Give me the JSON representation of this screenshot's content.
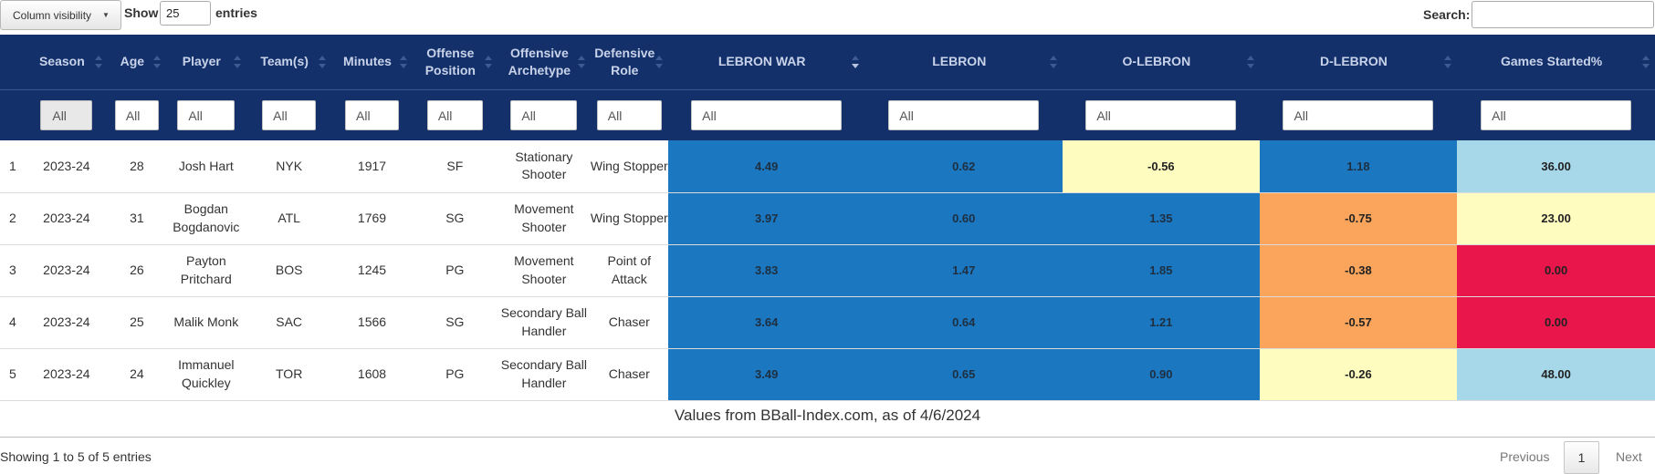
{
  "controls": {
    "column_visibility": "Column visibility",
    "show": "Show",
    "page_length": "25",
    "entries": "entries",
    "search_label": "Search:",
    "search_value": ""
  },
  "columns": [
    {
      "label": "",
      "sortable": false
    },
    {
      "label": "Season",
      "sortable": true
    },
    {
      "label": "Age",
      "sortable": true
    },
    {
      "label": "Player",
      "sortable": true
    },
    {
      "label": "Team(s)",
      "sortable": true
    },
    {
      "label": "Minutes",
      "sortable": true
    },
    {
      "label": "Offense Position",
      "sortable": true
    },
    {
      "label": "Offensive Archetype",
      "sortable": true
    },
    {
      "label": "Defensive Role",
      "sortable": true
    },
    {
      "label": "LEBRON WAR",
      "sortable": true,
      "sorted": "desc"
    },
    {
      "label": "LEBRON",
      "sortable": true
    },
    {
      "label": "O-LEBRON",
      "sortable": true
    },
    {
      "label": "D-LEBRON",
      "sortable": true
    },
    {
      "label": "Games Started%",
      "sortable": true
    }
  ],
  "filters": [
    "All",
    "All",
    "All",
    "All",
    "All",
    "All",
    "All",
    "All",
    "All",
    "All",
    "All",
    "All",
    "All"
  ],
  "rows": [
    {
      "n": "1",
      "season": "2023-24",
      "age": "28",
      "player": "Josh Hart",
      "team": "NYK",
      "minutes": "1917",
      "pos": "SF",
      "archetype": "Stationary Shooter",
      "role": "Wing Stopper",
      "war": "4.49",
      "lebron": "0.62",
      "olebron": "-0.56",
      "dlebron": "1.18",
      "gs": "36.00"
    },
    {
      "n": "2",
      "season": "2023-24",
      "age": "31",
      "player": "Bogdan Bogdanovic",
      "team": "ATL",
      "minutes": "1769",
      "pos": "SG",
      "archetype": "Movement Shooter",
      "role": "Wing Stopper",
      "war": "3.97",
      "lebron": "0.60",
      "olebron": "1.35",
      "dlebron": "-0.75",
      "gs": "23.00"
    },
    {
      "n": "3",
      "season": "2023-24",
      "age": "26",
      "player": "Payton Pritchard",
      "team": "BOS",
      "minutes": "1245",
      "pos": "PG",
      "archetype": "Movement Shooter",
      "role": "Point of Attack",
      "war": "3.83",
      "lebron": "1.47",
      "olebron": "1.85",
      "dlebron": "-0.38",
      "gs": "0.00"
    },
    {
      "n": "4",
      "season": "2023-24",
      "age": "25",
      "player": "Malik Monk",
      "team": "SAC",
      "minutes": "1566",
      "pos": "SG",
      "archetype": "Secondary Ball Handler",
      "role": "Chaser",
      "war": "3.64",
      "lebron": "0.64",
      "olebron": "1.21",
      "dlebron": "-0.57",
      "gs": "0.00"
    },
    {
      "n": "5",
      "season": "2023-24",
      "age": "24",
      "player": "Immanuel Quickley",
      "team": "TOR",
      "minutes": "1608",
      "pos": "PG",
      "archetype": "Secondary Ball Handler",
      "role": "Chaser",
      "war": "3.49",
      "lebron": "0.65",
      "olebron": "0.90",
      "dlebron": "-0.26",
      "gs": "48.00"
    }
  ],
  "cell_colors": {
    "war": [
      "#1a77c0",
      "#1a77c0",
      "#1a77c0",
      "#1a77c0",
      "#1a77c0"
    ],
    "lebron": [
      "#1a77c0",
      "#1a77c0",
      "#1a77c0",
      "#1a77c0",
      "#1a77c0"
    ],
    "olebron": [
      "#fefdbf",
      "#1a77c0",
      "#1a77c0",
      "#1a77c0",
      "#1a77c0"
    ],
    "dlebron": [
      "#1a77c0",
      "#fba55c",
      "#fba55c",
      "#fba55c",
      "#fefdbf"
    ],
    "gs": [
      "#a6d8ea",
      "#fefdbf",
      "#e8164a",
      "#e8164a",
      "#a6d8ea"
    ]
  },
  "caption": "Values from BBall-Index.com, as of 4/6/2024",
  "footer": {
    "info": "Showing 1 to 5 of 5 entries",
    "previous": "Previous",
    "page": "1",
    "next": "Next"
  }
}
